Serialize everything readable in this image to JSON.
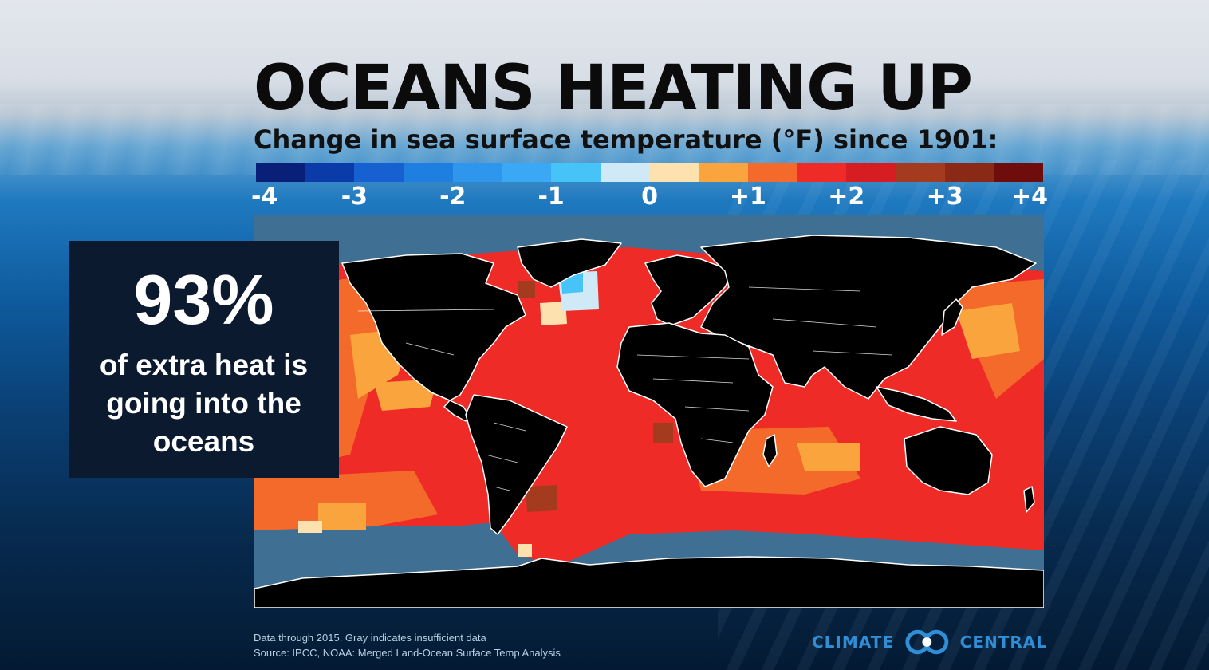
{
  "title": "OCEANS HEATING UP",
  "subtitle": "Change in sea surface temperature (°F) since 1901:",
  "legend": {
    "colors": [
      "#0a1f78",
      "#0a3ba8",
      "#1660d2",
      "#1f7fe0",
      "#2f96ee",
      "#3aa8f5",
      "#46c4f7",
      "#cfe9f7",
      "#fde2b0",
      "#f9a43c",
      "#f36a2a",
      "#ee2b26",
      "#d61e22",
      "#a43a1e",
      "#8a2a16",
      "#6f0d0d"
    ],
    "ticks": [
      "-4",
      "-3",
      "-2",
      "-1",
      "0",
      "+1",
      "+2",
      "+3",
      "+4"
    ]
  },
  "map": {
    "land_color": "#000000",
    "border_color": "#ffffff",
    "ocean_colors": {
      "insufficient_data": "#3f6f93",
      "plus_2": "#ee2b26",
      "plus_1_5": "#f36a2a",
      "plus_1": "#f9a43c",
      "plus_0_5": "#fde2b0",
      "plus_3": "#a43a1e",
      "minus_1": "#cfe9f7",
      "minus_1_5": "#46c4f7"
    }
  },
  "callout": {
    "stat": "93%",
    "text": "of extra heat is going into the oceans"
  },
  "footnote": {
    "line1": "Data through 2015. Gray indicates insufficient data",
    "line2": "Source: IPCC, NOAA: Merged Land-Ocean Surface Temp Analysis"
  },
  "logo": {
    "left_word": "CLIMATE",
    "right_word": "CENTRAL",
    "color": "#2f8fd6"
  }
}
